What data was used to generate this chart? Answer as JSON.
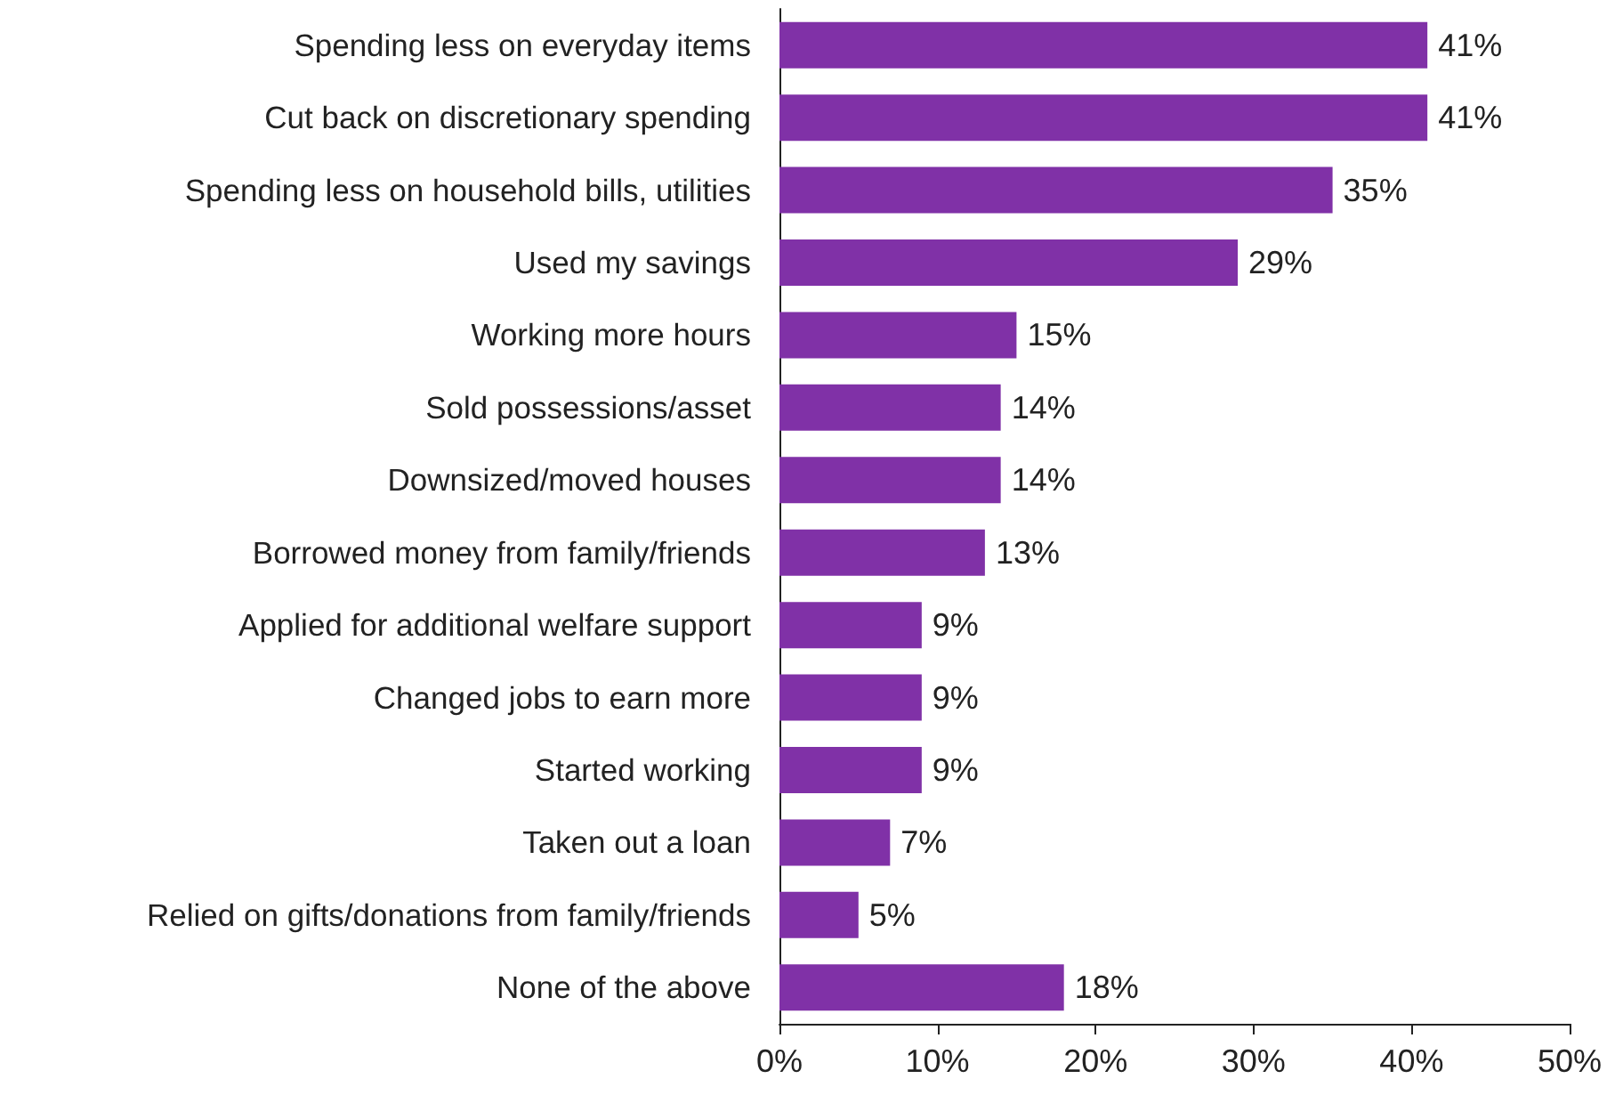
{
  "chart_data": {
    "type": "bar",
    "orientation": "horizontal",
    "categories": [
      "Spending less on everyday items",
      "Cut back on discretionary spending",
      "Spending less on household bills, utilities",
      "Used my savings",
      "Working more hours",
      "Sold possessions/asset",
      "Downsized/moved houses",
      "Borrowed money from family/friends",
      "Applied for additional welfare support",
      "Changed jobs to earn more",
      "Started working",
      "Taken out a loan",
      "Relied on gifts/donations from family/friends",
      "None of the above"
    ],
    "values": [
      41,
      41,
      35,
      29,
      15,
      14,
      14,
      13,
      9,
      9,
      9,
      7,
      5,
      18
    ],
    "value_labels": [
      "41%",
      "41%",
      "35%",
      "29%",
      "15%",
      "14%",
      "14%",
      "13%",
      "9%",
      "9%",
      "9%",
      "7%",
      "5%",
      "18%"
    ],
    "color": "#8031a7",
    "xlim": [
      0,
      50
    ],
    "xticks": [
      {
        "value": 0,
        "label": "0%"
      },
      {
        "value": 10,
        "label": "10%"
      },
      {
        "value": 20,
        "label": "20%"
      },
      {
        "value": 30,
        "label": "30%"
      },
      {
        "value": 40,
        "label": "40%"
      },
      {
        "value": 50,
        "label": "50%"
      }
    ],
    "grid": false
  }
}
